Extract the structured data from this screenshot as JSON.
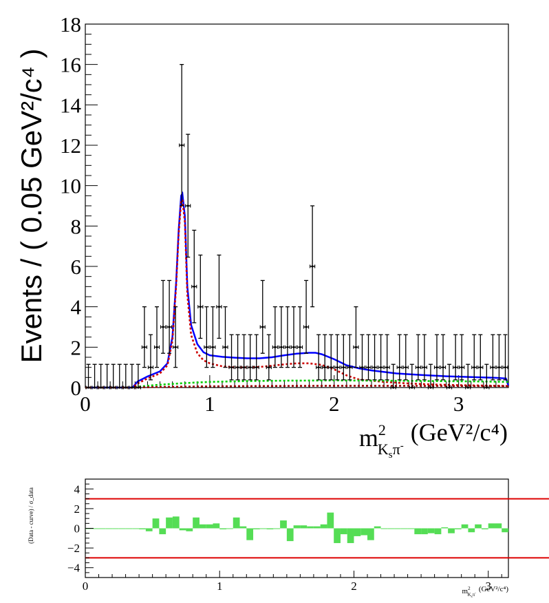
{
  "chart_data": [
    {
      "type": "scatter",
      "title": "",
      "xlim": [
        0,
        3.4
      ],
      "ylim": [
        0,
        18
      ],
      "x_ticks": [
        "0",
        "1",
        "2",
        "3"
      ],
      "y_ticks": [
        "0",
        "2",
        "4",
        "6",
        "8",
        "10",
        "12",
        "14",
        "16",
        "18"
      ],
      "ylabel": "Events / ( 0.05 GeV²/c⁴ )",
      "xlabel": {
        "base": "m",
        "sup": "2",
        "sub_main": "K",
        "sub_sub": "s",
        "sub_tail": "π",
        "sub_sup": "-",
        "units": "(GeV²/c⁴)"
      },
      "bin_width": 0.05,
      "data": {
        "x": [
          0.025,
          0.075,
          0.125,
          0.175,
          0.225,
          0.275,
          0.325,
          0.375,
          0.425,
          0.475,
          0.525,
          0.575,
          0.625,
          0.675,
          0.725,
          0.775,
          0.825,
          0.875,
          0.925,
          0.975,
          1.025,
          1.075,
          1.125,
          1.175,
          1.225,
          1.275,
          1.325,
          1.375,
          1.425,
          1.475,
          1.525,
          1.575,
          1.625,
          1.675,
          1.725,
          1.775,
          1.825,
          1.875,
          1.925,
          1.975,
          2.025,
          2.075,
          2.125,
          2.175,
          2.225,
          2.275,
          2.325,
          2.375,
          2.425,
          2.475,
          2.525,
          2.575,
          2.625,
          2.675,
          2.725,
          2.775,
          2.825,
          2.875,
          2.925,
          2.975,
          3.025,
          3.075,
          3.125,
          3.175,
          3.225,
          3.275,
          3.325,
          3.375
        ],
        "y": [
          0,
          0,
          0,
          0,
          0,
          0,
          0,
          0,
          0,
          2,
          1,
          2,
          3,
          3,
          2,
          12,
          9,
          5,
          4,
          2,
          2,
          4,
          2,
          1,
          1,
          1,
          1,
          1,
          3,
          1,
          2,
          2,
          2,
          2,
          2,
          3,
          6,
          1,
          1,
          1,
          1,
          1,
          1,
          2,
          1,
          1,
          1,
          1,
          1,
          0,
          1,
          1,
          0,
          1,
          1,
          0,
          1,
          1,
          0,
          1,
          1,
          0,
          1,
          1,
          0,
          1,
          1,
          1
        ]
      },
      "curves": [
        {
          "name": "total",
          "color": "#0000ff",
          "style": "solid",
          "x": [
            0,
            0.38,
            0.42,
            0.5,
            0.6,
            0.66,
            0.7,
            0.73,
            0.75,
            0.77,
            0.78,
            0.8,
            0.82,
            0.85,
            0.9,
            0.95,
            1.0,
            1.1,
            1.2,
            1.3,
            1.4,
            1.5,
            1.6,
            1.7,
            1.8,
            1.85,
            1.9,
            2.0,
            2.1,
            2.2,
            2.3,
            2.5,
            2.7,
            2.9,
            3.1,
            3.3,
            3.38,
            3.4
          ],
          "y": [
            0,
            0,
            0.3,
            0.55,
            0.8,
            1.2,
            2.5,
            5.2,
            7.8,
            9.5,
            9.6,
            8.5,
            5.0,
            3.1,
            2.15,
            1.75,
            1.6,
            1.52,
            1.48,
            1.45,
            1.45,
            1.5,
            1.6,
            1.68,
            1.72,
            1.72,
            1.65,
            1.4,
            1.1,
            0.95,
            0.85,
            0.7,
            0.62,
            0.56,
            0.52,
            0.48,
            0.45,
            0.1
          ]
        },
        {
          "name": "signal",
          "color": "#cc0000",
          "style": "dotted",
          "x": [
            0,
            0.38,
            0.42,
            0.5,
            0.6,
            0.66,
            0.7,
            0.73,
            0.75,
            0.77,
            0.78,
            0.8,
            0.82,
            0.85,
            0.9,
            0.95,
            1.0,
            1.1,
            1.2,
            1.3,
            1.4,
            1.5,
            1.6,
            1.7,
            1.8,
            1.9,
            2.0,
            2.1,
            2.2,
            2.4,
            2.6,
            2.8,
            3.0,
            3.2,
            3.4
          ],
          "y": [
            0,
            0,
            0.2,
            0.45,
            0.7,
            1.1,
            2.3,
            5.0,
            7.6,
            9.2,
            9.3,
            8.2,
            4.6,
            2.6,
            1.7,
            1.35,
            1.2,
            1.05,
            1.0,
            1.0,
            1.02,
            1.08,
            1.15,
            1.2,
            1.2,
            1.12,
            0.9,
            0.6,
            0.4,
            0.28,
            0.2,
            0.15,
            0.12,
            0.1,
            0.08
          ]
        },
        {
          "name": "background",
          "color": "#00cc00",
          "style": "dotted",
          "x": [
            0,
            0.38,
            0.45,
            0.6,
            0.8,
            1.0,
            1.3,
            1.6,
            2.0,
            2.4,
            2.8,
            3.2,
            3.4
          ],
          "y": [
            0,
            0,
            0.06,
            0.14,
            0.22,
            0.28,
            0.32,
            0.34,
            0.35,
            0.34,
            0.32,
            0.3,
            0.28
          ]
        },
        {
          "name": "background-2",
          "color": "#990000",
          "style": "dotted",
          "x": [
            0,
            0.38,
            0.6,
            1.0,
            1.5,
            2.0,
            2.5,
            3.0,
            3.4
          ],
          "y": [
            0,
            0,
            0.03,
            0.06,
            0.08,
            0.09,
            0.09,
            0.08,
            0.07
          ]
        }
      ]
    },
    {
      "type": "bar",
      "title": "",
      "ylabel": "(Data - curve) / σ_data",
      "xlabel": {
        "base": "m",
        "sup": "2",
        "sub_main": "K",
        "sub_sub": "s",
        "sub_tail": "π",
        "sub_sup": "-",
        "units": "(GeV²/c⁴)"
      },
      "xlim": [
        0,
        3.15
      ],
      "ylim": [
        -5,
        5
      ],
      "x_ticks": [
        "0",
        "1",
        "2",
        "3"
      ],
      "y_ticks": [
        "−4",
        "−2",
        "0",
        "2",
        "4"
      ],
      "bar_color": "#55dd55",
      "reference_lines": [
        3,
        -3
      ],
      "reference_color": "#dd0000",
      "bin_width": 0.05,
      "x": [
        0.025,
        0.075,
        0.125,
        0.175,
        0.225,
        0.275,
        0.325,
        0.375,
        0.425,
        0.475,
        0.525,
        0.575,
        0.625,
        0.675,
        0.725,
        0.775,
        0.825,
        0.875,
        0.925,
        0.975,
        1.025,
        1.075,
        1.125,
        1.175,
        1.225,
        1.275,
        1.325,
        1.375,
        1.425,
        1.475,
        1.525,
        1.575,
        1.625,
        1.675,
        1.725,
        1.775,
        1.825,
        1.875,
        1.925,
        1.975,
        2.025,
        2.075,
        2.125,
        2.175,
        2.225,
        2.275,
        2.325,
        2.375,
        2.425,
        2.475,
        2.525,
        2.575,
        2.625,
        2.675,
        2.725,
        2.775,
        2.825,
        2.875,
        2.925,
        2.975,
        3.025,
        3.075,
        3.125
      ],
      "values": [
        0,
        0,
        0,
        0,
        0,
        0,
        -0.05,
        -0.05,
        -0.1,
        -0.3,
        1.0,
        -0.6,
        1.1,
        1.2,
        -0.2,
        -0.3,
        1.1,
        0.4,
        0.4,
        0.5,
        -0.1,
        0.0,
        1.1,
        0.2,
        -1.2,
        -0.1,
        0.0,
        -0.1,
        0.0,
        0.8,
        -1.3,
        0.3,
        0.3,
        0.2,
        0.2,
        0.4,
        1.6,
        -1.5,
        -0.6,
        -1.5,
        -0.8,
        -0.7,
        -1.2,
        0.2,
        -0.05,
        0.0,
        -0.05,
        0.0,
        -0.05,
        -0.6,
        -0.6,
        -0.5,
        -0.6,
        0.1,
        -0.5,
        -0.1,
        0.4,
        -0.4,
        0.4,
        -0.1,
        0.5,
        0.5,
        -0.4
      ]
    }
  ]
}
